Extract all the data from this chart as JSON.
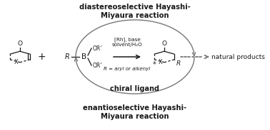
{
  "title_top": "diastereoselective Hayashi-\nMiyaura reaction",
  "title_bottom": "enantioselective Hayashi-\nMiyaura reaction",
  "label_chiral": "chiral ligand",
  "label_rh": "[Rh], base\nsolvent/H₂O",
  "label_r": "R = aryl or alkenyl",
  "label_natural": "natural products",
  "bg_color": "#ffffff",
  "text_color": "#1a1a1a",
  "gray_color": "#777777",
  "fig_width": 3.78,
  "fig_height": 1.83,
  "dpi": 100
}
